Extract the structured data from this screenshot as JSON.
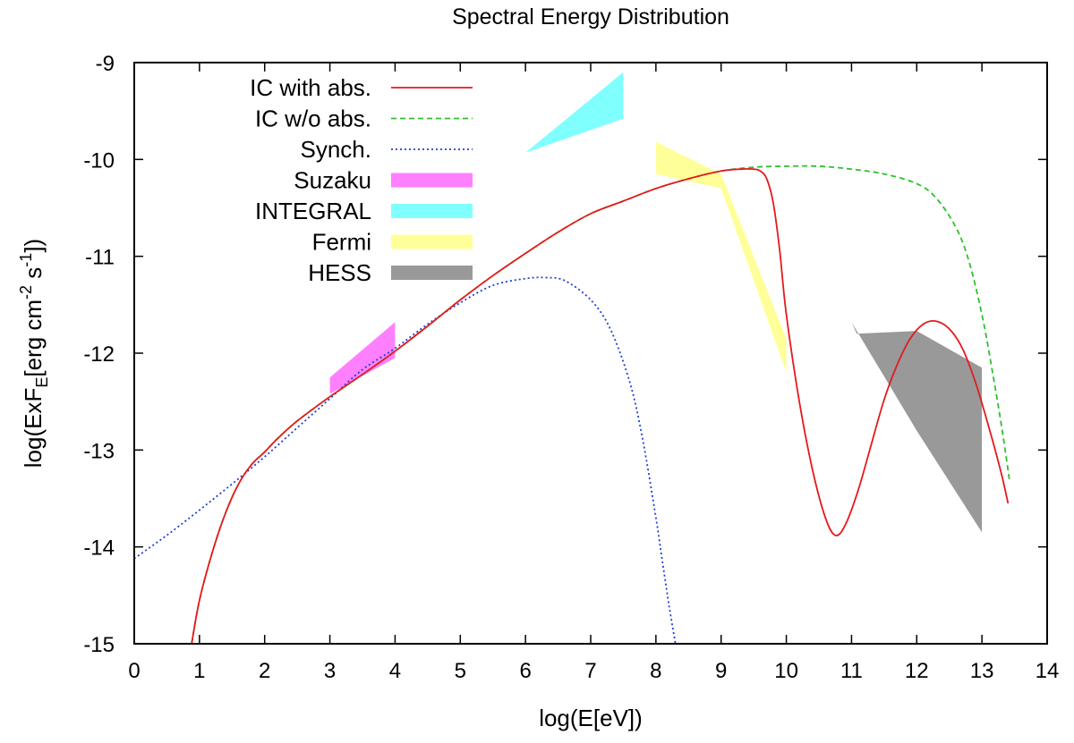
{
  "chart_data": {
    "type": "line",
    "title": "Spectral Energy Distribution",
    "xlabel": "log(E[eV])",
    "ylabel": {
      "parts": [
        "log(ExF",
        "E",
        "[erg cm",
        "-2",
        " s",
        "-1",
        "])"
      ]
    },
    "xlim": [
      0,
      14
    ],
    "ylim": [
      -15,
      -9
    ],
    "xticks": [
      0,
      1,
      2,
      3,
      4,
      5,
      6,
      7,
      8,
      9,
      10,
      11,
      12,
      13,
      14
    ],
    "yticks": [
      -15,
      -14,
      -13,
      -12,
      -11,
      -10,
      -9
    ],
    "xtick_labels": [
      "0",
      "1",
      "2",
      "3",
      "4",
      "5",
      "6",
      "7",
      "8",
      "9",
      "10",
      "11",
      "12",
      "13",
      "14"
    ],
    "ytick_labels": [
      "-15",
      "-14",
      "-13",
      "-12",
      "-11",
      "-10",
      "-9"
    ],
    "series": [
      {
        "name": "IC with abs.",
        "color": "#e41a1c",
        "style": "solid",
        "x": [
          0.88,
          1.0,
          1.2,
          1.4,
          1.6,
          1.8,
          2.0,
          2.2,
          2.5,
          3.0,
          3.5,
          4.0,
          4.5,
          5.0,
          5.5,
          6.0,
          6.5,
          7.0,
          7.5,
          8.0,
          8.5,
          9.0,
          9.3,
          9.5,
          9.6,
          9.7,
          9.8,
          9.9,
          10.0,
          10.2,
          10.4,
          10.6,
          10.75,
          10.9,
          11.1,
          11.3,
          11.5,
          11.7,
          11.9,
          12.1,
          12.3,
          12.5,
          12.7,
          12.9,
          13.1,
          13.3,
          13.4
        ],
        "y": [
          -15.0,
          -14.55,
          -14.05,
          -13.65,
          -13.35,
          -13.15,
          -13.02,
          -12.88,
          -12.7,
          -12.45,
          -12.22,
          -11.98,
          -11.72,
          -11.45,
          -11.2,
          -10.97,
          -10.75,
          -10.56,
          -10.43,
          -10.3,
          -10.2,
          -10.12,
          -10.1,
          -10.1,
          -10.12,
          -10.2,
          -10.45,
          -10.95,
          -11.6,
          -12.5,
          -13.2,
          -13.7,
          -13.88,
          -13.78,
          -13.42,
          -12.95,
          -12.48,
          -12.12,
          -11.85,
          -11.7,
          -11.67,
          -11.75,
          -11.95,
          -12.3,
          -12.75,
          -13.25,
          -13.55
        ]
      },
      {
        "name": "IC w/o abs.",
        "color": "#2ec12e",
        "style": "dashed",
        "x": [
          0.88,
          1.0,
          1.2,
          1.4,
          1.6,
          1.8,
          2.0,
          2.2,
          2.5,
          3.0,
          3.5,
          4.0,
          4.5,
          5.0,
          5.5,
          6.0,
          6.5,
          7.0,
          7.5,
          8.0,
          8.5,
          9.0,
          9.5,
          10.0,
          10.5,
          11.0,
          11.5,
          12.0,
          12.3,
          12.6,
          12.8,
          13.0,
          13.15,
          13.3,
          13.42
        ],
        "y": [
          -15.0,
          -14.55,
          -14.05,
          -13.65,
          -13.35,
          -13.15,
          -13.02,
          -12.88,
          -12.7,
          -12.45,
          -12.22,
          -11.98,
          -11.72,
          -11.45,
          -11.2,
          -10.97,
          -10.75,
          -10.56,
          -10.43,
          -10.3,
          -10.2,
          -10.12,
          -10.08,
          -10.07,
          -10.07,
          -10.1,
          -10.15,
          -10.25,
          -10.4,
          -10.7,
          -11.05,
          -11.6,
          -12.15,
          -12.75,
          -13.3
        ]
      },
      {
        "name": "Synch.",
        "color": "#1f3fd6",
        "style": "dotted",
        "x": [
          0.0,
          0.5,
          1.0,
          1.5,
          2.0,
          2.5,
          3.0,
          3.5,
          4.0,
          4.5,
          5.0,
          5.5,
          6.0,
          6.3,
          6.6,
          7.0,
          7.3,
          7.6,
          7.8,
          8.0,
          8.1,
          8.2,
          8.3
        ],
        "y": [
          -14.12,
          -13.88,
          -13.62,
          -13.35,
          -13.07,
          -12.77,
          -12.47,
          -12.17,
          -11.95,
          -11.7,
          -11.48,
          -11.3,
          -11.23,
          -11.22,
          -11.25,
          -11.45,
          -11.75,
          -12.3,
          -12.9,
          -13.7,
          -14.15,
          -14.6,
          -15.0
        ]
      }
    ],
    "bands": [
      {
        "name": "Suzaku",
        "color": "#ff80ff",
        "polygon": [
          [
            3.0,
            -12.25
          ],
          [
            4.0,
            -11.68
          ],
          [
            4.0,
            -12.05
          ],
          [
            3.0,
            -12.42
          ]
        ]
      },
      {
        "name": "INTEGRAL",
        "color": "#80ffff",
        "polygon": [
          [
            6.0,
            -9.93
          ],
          [
            7.5,
            -9.1
          ],
          [
            7.5,
            -9.58
          ]
        ]
      },
      {
        "name": "Fermi",
        "color": "#ffff99",
        "polygon": [
          [
            8.0,
            -9.82
          ],
          [
            9.0,
            -10.15
          ],
          [
            10.0,
            -11.85
          ],
          [
            10.0,
            -12.2
          ],
          [
            9.0,
            -10.3
          ],
          [
            8.0,
            -10.15
          ]
        ]
      },
      {
        "name": "HESS",
        "color": "#999999",
        "polygon": [
          [
            11.0,
            -11.68
          ],
          [
            11.08,
            -11.8
          ],
          [
            12.0,
            -11.77
          ],
          [
            13.0,
            -12.15
          ],
          [
            13.0,
            -13.85
          ],
          [
            12.0,
            -12.8
          ]
        ]
      }
    ],
    "legend": {
      "position": "top-left",
      "items": [
        {
          "label": "IC with abs.",
          "kind": "line",
          "color": "#e41a1c",
          "style": "solid"
        },
        {
          "label": "IC w/o abs.",
          "kind": "line",
          "color": "#2ec12e",
          "style": "dashed"
        },
        {
          "label": "Synch.",
          "kind": "line",
          "color": "#1f3fd6",
          "style": "dotted"
        },
        {
          "label": "Suzaku",
          "kind": "fill",
          "color": "#ff80ff"
        },
        {
          "label": "INTEGRAL",
          "kind": "fill",
          "color": "#80ffff"
        },
        {
          "label": "Fermi",
          "kind": "fill",
          "color": "#ffff99"
        },
        {
          "label": "HESS",
          "kind": "fill",
          "color": "#999999"
        }
      ]
    },
    "grid": false
  }
}
